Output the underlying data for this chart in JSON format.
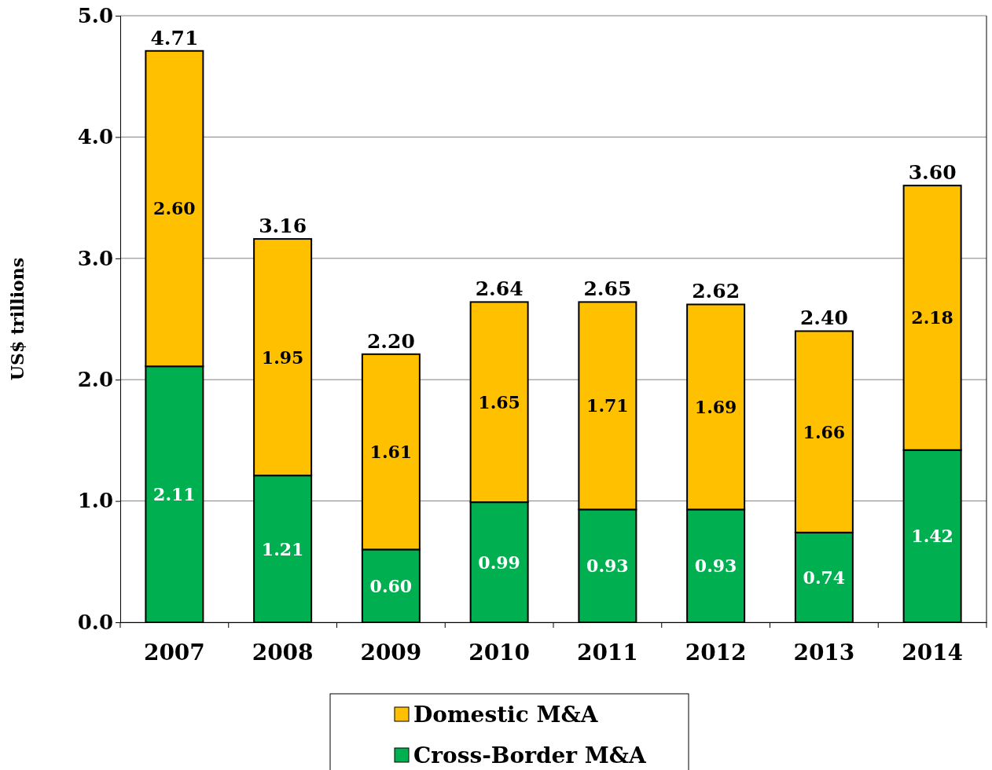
{
  "chart_data": {
    "type": "bar",
    "stacked": true,
    "ylabel": "US$ trillions",
    "categories": [
      "2007",
      "2008",
      "2009",
      "2010",
      "2011",
      "2012",
      "2013",
      "2014"
    ],
    "series": [
      {
        "name": "Cross-Border M&A",
        "color": "#00b050",
        "values": [
          2.11,
          1.21,
          0.6,
          0.99,
          0.93,
          0.93,
          0.74,
          1.42
        ],
        "value_labels": [
          "2.11",
          "1.21",
          "0.60",
          "0.99",
          "0.93",
          "0.93",
          "0.74",
          "1.42"
        ]
      },
      {
        "name": "Domestic M&A",
        "color": "#ffc000",
        "values": [
          2.6,
          1.95,
          1.61,
          1.65,
          1.71,
          1.69,
          1.66,
          2.18
        ],
        "value_labels": [
          "2.60",
          "1.95",
          "1.61",
          "1.65",
          "1.71",
          "1.69",
          "1.66",
          "2.18"
        ]
      }
    ],
    "totals": [
      "4.71",
      "3.16",
      "2.20",
      "2.64",
      "2.65",
      "2.62",
      "2.40",
      "3.60"
    ],
    "ylim": [
      0,
      5
    ],
    "yticks": [
      {
        "value": 0,
        "label": "0.0"
      },
      {
        "value": 1,
        "label": "1.0"
      },
      {
        "value": 2,
        "label": "2.0"
      },
      {
        "value": 3,
        "label": "3.0"
      },
      {
        "value": 4,
        "label": "4.0"
      },
      {
        "value": 5,
        "label": "5.0"
      }
    ],
    "grid": "y",
    "legend": "bottom"
  }
}
